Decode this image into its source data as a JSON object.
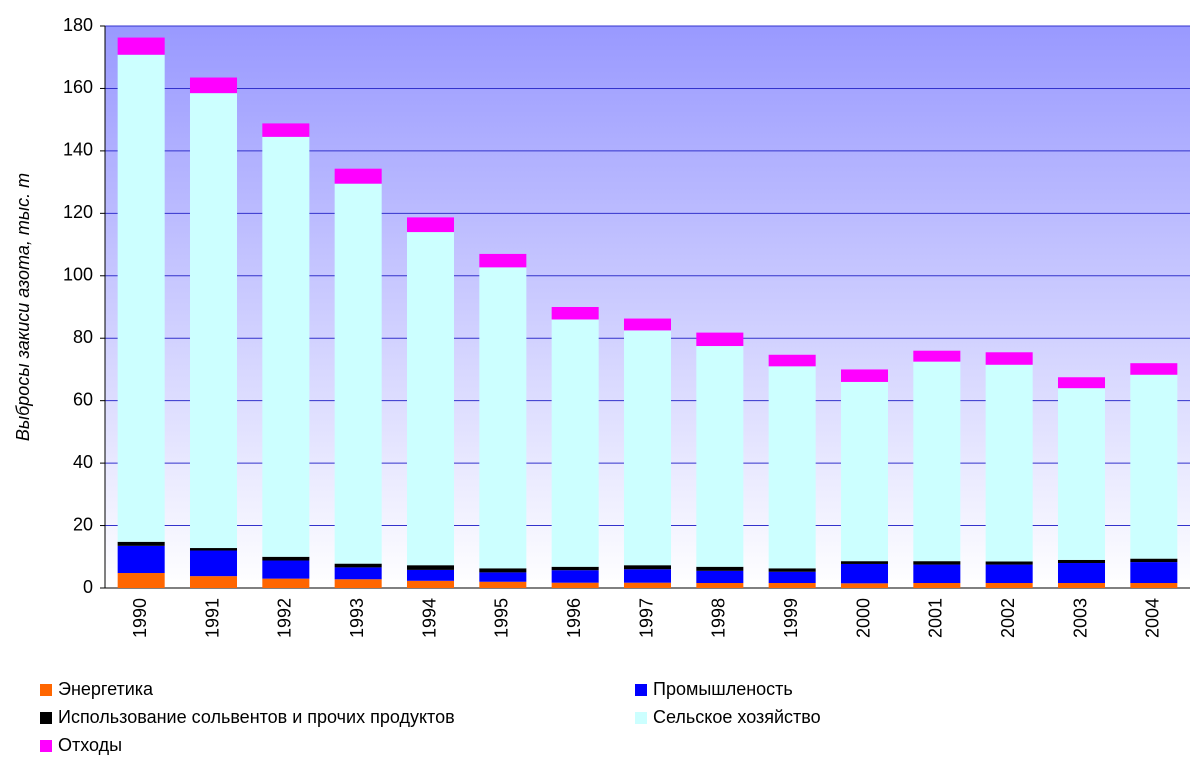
{
  "chart_data": {
    "type": "stacked_bar",
    "ylabel": "Выбросы закиси азота, тыс. т",
    "categories": [
      "1990",
      "1991",
      "1992",
      "1993",
      "1994",
      "1995",
      "1996",
      "1997",
      "1998",
      "1999",
      "2000",
      "2001",
      "2002",
      "2003",
      "2004"
    ],
    "series": [
      {
        "name": "Энергетика",
        "color": "#ff6600",
        "values": [
          4.8,
          3.8,
          3.0,
          2.8,
          2.3,
          2.0,
          1.7,
          1.7,
          1.6,
          1.6,
          1.5,
          1.6,
          1.6,
          1.6,
          1.6
        ]
      },
      {
        "name": "Промышленость",
        "color": "#0000ff",
        "values": [
          8.7,
          8.2,
          5.8,
          3.8,
          3.5,
          3.0,
          4.0,
          4.3,
          3.9,
          3.6,
          6.2,
          5.9,
          5.9,
          6.4,
          6.7
        ]
      },
      {
        "name": "Использование сольвентов и прочих продуктов",
        "color": "#000000",
        "values": [
          1.3,
          0.8,
          1.2,
          1.2,
          1.5,
          1.3,
          1.1,
          1.3,
          1.3,
          1.1,
          0.9,
          1.1,
          1.0,
          1.0,
          1.1
        ]
      },
      {
        "name": "Сельское хозяйство",
        "color": "#ccffff",
        "values": [
          156,
          145.7,
          134.5,
          121.7,
          106.7,
          96.4,
          79.2,
          75.2,
          70.7,
          64.7,
          57.4,
          63.9,
          63,
          55,
          58.9
        ]
      },
      {
        "name": "Отходы",
        "color": "#ff00ff",
        "values": [
          5.5,
          5.0,
          4.3,
          4.8,
          4.7,
          4.3,
          4.0,
          3.8,
          4.3,
          3.7,
          4.0,
          3.5,
          4.0,
          3.5,
          3.7
        ]
      }
    ],
    "ylim": [
      0,
      180
    ],
    "yticks": [
      0,
      20,
      40,
      60,
      80,
      100,
      120,
      140,
      160,
      180
    ],
    "grid": true
  }
}
